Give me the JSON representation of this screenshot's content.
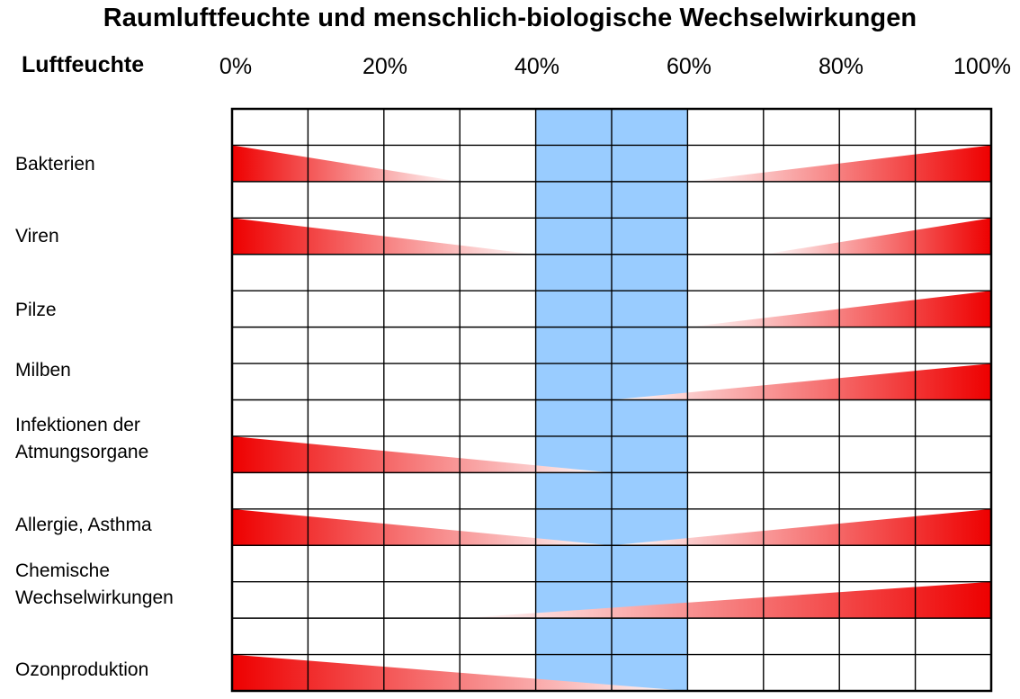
{
  "chart_data": {
    "type": "table",
    "title": "Raumluftfeuchte und menschlich-biologische Wechselwirkungen",
    "xlabel": "Luftfeuchte",
    "x_ticks": [
      "0%",
      "20%",
      "40%",
      "60%",
      "80%",
      "100%"
    ],
    "xlim": [
      0,
      100
    ],
    "optimal_range": [
      40,
      60
    ],
    "grid": true,
    "colors": {
      "optimal": "#99ccff",
      "effect_strong": "#ee0000",
      "effect_weak": "#ffffff"
    },
    "rows": [
      {
        "label": "Bakterien",
        "low": 30,
        "high": 60
      },
      {
        "label": "Viren",
        "low": 40,
        "high": 70
      },
      {
        "label": "Pilze",
        "low": null,
        "high": 60
      },
      {
        "label": "Milben",
        "low": null,
        "high": 50
      },
      {
        "label": "Infektionen der\nAtmungsorgane",
        "low": 50,
        "high": null
      },
      {
        "label": "Allergie, Asthma",
        "low": 50,
        "high": 50
      },
      {
        "label": "Chemische\nWechselwirkungen",
        "low": null,
        "high": 30
      },
      {
        "label": "Ozonproduktion",
        "low": 60,
        "high": null
      }
    ]
  }
}
